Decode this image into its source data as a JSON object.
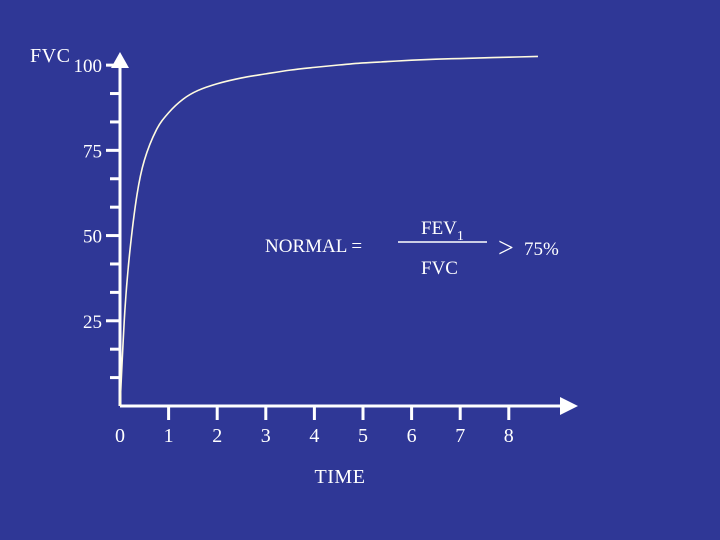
{
  "chart_data": {
    "type": "line",
    "ylabel": "FVC",
    "xlabel": "TIME",
    "xlim": [
      0,
      8
    ],
    "ylim": [
      0,
      100
    ],
    "x_ticks": [
      0,
      1,
      2,
      3,
      4,
      5,
      6,
      7,
      8
    ],
    "x_tick_labels": [
      "0",
      "1",
      "2",
      "3",
      "4",
      "5",
      "6",
      "7",
      "8"
    ],
    "y_major_ticks": [
      25,
      50,
      75,
      100
    ],
    "y_tick_labels": [
      "25",
      "50",
      "75",
      "100"
    ],
    "y_minor_step": 8.33,
    "grid": false,
    "series": [
      {
        "x": [
          0,
          0.1,
          0.2,
          0.35,
          0.5,
          0.75,
          1.0,
          1.3,
          1.6,
          2.0,
          2.5,
          3.0,
          3.5,
          4.0,
          4.5,
          5.0,
          5.5,
          6.0,
          6.5,
          7.0,
          7.5,
          8.0,
          8.6
        ],
        "y": [
          0,
          28,
          45,
          62,
          72,
          81,
          86,
          90,
          92.5,
          94.5,
          96.2,
          97.4,
          98.5,
          99.3,
          100,
          100.6,
          101,
          101.4,
          101.7,
          101.9,
          102.1,
          102.3,
          102.5
        ],
        "color": "#fffbe0"
      }
    ],
    "annotation": {
      "prefix": "NORMAL =",
      "numerator": "FEV",
      "numerator_subscript": "1",
      "denominator": "FVC",
      "comparator": ">",
      "threshold": "75%"
    }
  }
}
